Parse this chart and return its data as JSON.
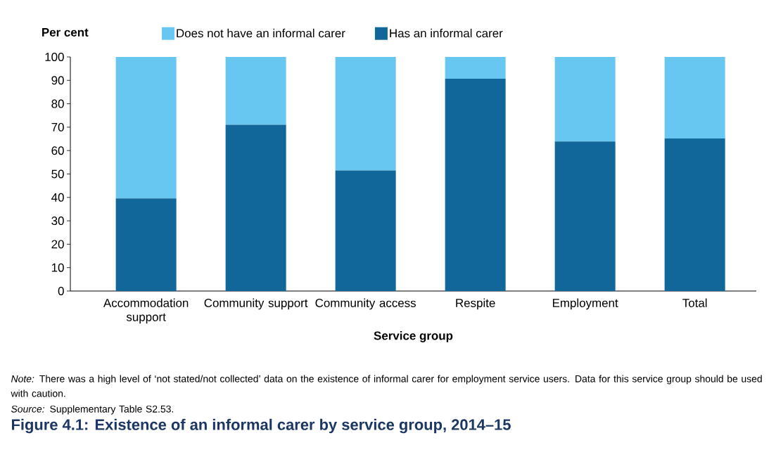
{
  "chart_data": {
    "type": "bar",
    "stacked": true,
    "title": "Figure 4.1: Existence of an informal carer by service group, 2014–15",
    "xlabel": "Service group",
    "ylabel": "Per cent",
    "categories": [
      "Accommodation support",
      "Community support",
      "Community access",
      "Respite",
      "Employment",
      "Total"
    ],
    "series": [
      {
        "name": "Has an informal carer",
        "color": "#12679a",
        "values": [
          39.6,
          71.0,
          51.5,
          90.7,
          63.9,
          65.2
        ]
      },
      {
        "name": "Does not have an informal carer",
        "color": "#68c7f0",
        "values": [
          60.4,
          29.0,
          48.5,
          9.3,
          36.1,
          34.8
        ]
      }
    ],
    "ylim": [
      0,
      100
    ],
    "yticks": [
      0,
      10,
      20,
      30,
      40,
      50,
      60,
      70,
      80,
      90,
      100
    ],
    "legend": "top",
    "annotations": [
      "*Note:* There was a high level of ‘not stated/not collected’ data on the existence of informal carer for employment service users. Data for this service group should be used with caution.",
      "*Source:* Supplementary Table S2.53."
    ]
  }
}
